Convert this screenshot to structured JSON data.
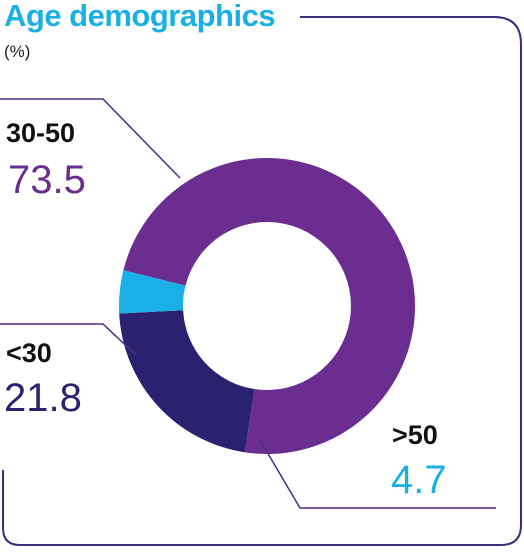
{
  "title": "Age demographics",
  "subtitle": "(%)",
  "colors": {
    "title": "#1ab0e6",
    "frame": "#3d2a78",
    "leader": "#4b2c83"
  },
  "chart_data": {
    "type": "pie",
    "style": "donut",
    "title": "Age demographics",
    "subtitle": "(%)",
    "legend": "none",
    "categories": [
      "30-50",
      "<30",
      ">50"
    ],
    "values": [
      73.5,
      21.8,
      4.7
    ],
    "value_labels": [
      "73.5",
      "21.8",
      "4.7"
    ],
    "colors": [
      "#6c2d91",
      "#2a2270",
      "#1ab0e6"
    ]
  }
}
